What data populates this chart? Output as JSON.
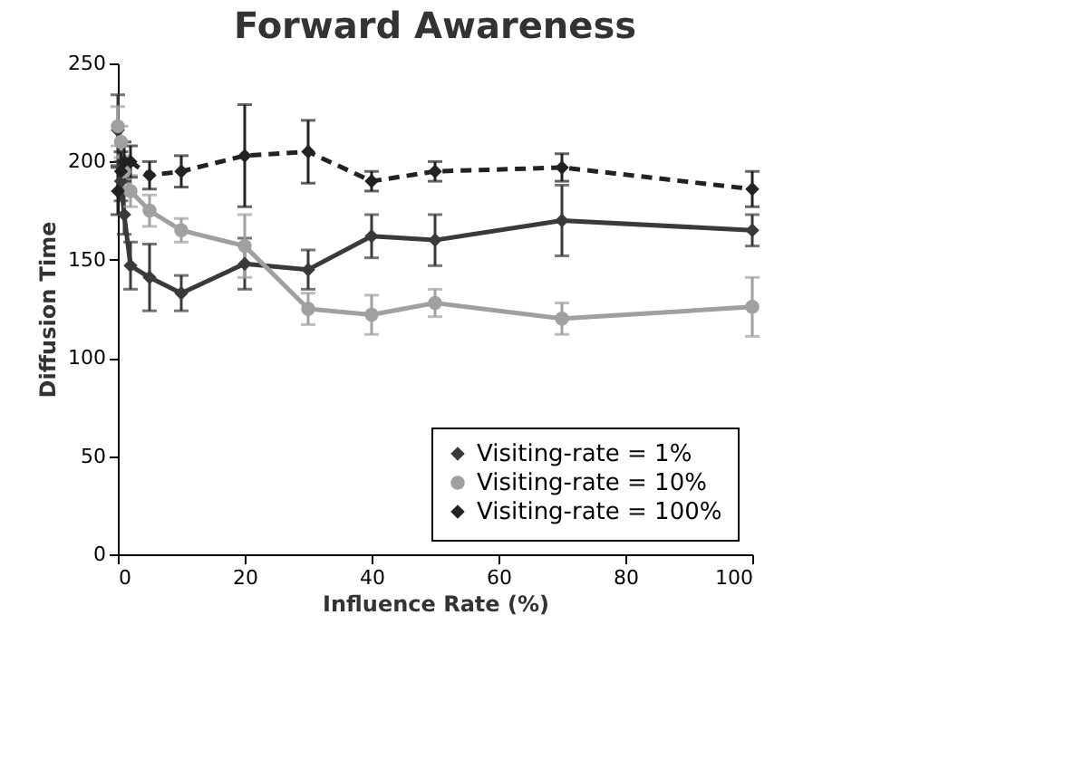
{
  "chart_data": {
    "type": "line",
    "title": "Forward Awareness",
    "xlabel": "Influence Rate (%)",
    "ylabel": "Diffusion Time",
    "x": [
      0,
      0.5,
      1,
      2,
      5,
      10,
      20,
      30,
      40,
      50,
      70,
      100
    ],
    "series": [
      {
        "name": "Visiting-rate = 1%",
        "color": "#3a3a3a",
        "marker": "diamond",
        "line_style": "solid",
        "values": [
          216,
          190,
          173,
          147,
          141,
          133,
          148,
          145,
          162,
          160,
          170,
          165
        ],
        "errors": [
          18,
          10,
          10,
          12,
          17,
          9,
          13,
          10,
          11,
          13,
          18,
          8
        ]
      },
      {
        "name": "Visiting-rate = 10%",
        "color": "#a0a0a0",
        "marker": "circle",
        "line_style": "solid",
        "values": [
          218,
          210,
          195,
          185,
          175,
          165,
          157,
          125,
          122,
          128,
          120,
          126
        ],
        "errors": [
          10,
          8,
          8,
          8,
          8,
          6,
          16,
          8,
          10,
          7,
          8,
          15
        ]
      },
      {
        "name": "Visiting-rate = 100%",
        "color": "#222222",
        "marker": "diamond",
        "line_style": "dashed",
        "values": [
          185,
          195,
          200,
          200,
          193,
          195,
          203,
          205,
          190,
          195,
          197,
          186
        ],
        "errors": [
          12,
          10,
          10,
          8,
          7,
          8,
          26,
          16,
          5,
          5,
          7,
          9
        ]
      }
    ],
    "xlim": [
      0,
      100
    ],
    "xticks": [
      0,
      20,
      40,
      60,
      80,
      100
    ],
    "ylim": [
      0,
      250
    ],
    "yticks": [
      0,
      50,
      100,
      150,
      200,
      250
    ],
    "grid": false,
    "legend": "bottom right"
  }
}
